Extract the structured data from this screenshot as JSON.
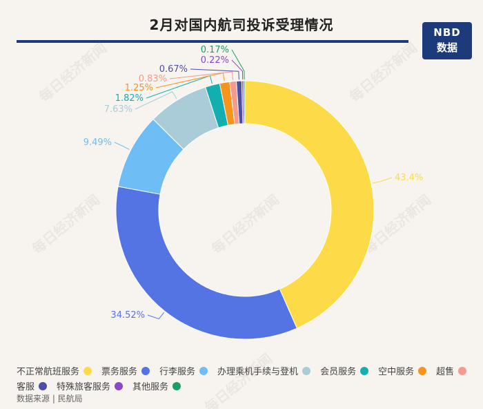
{
  "title": "2月对国内航司投诉受理情况",
  "logo": {
    "line1": "NBD",
    "line2": "数据"
  },
  "watermark": "每日经济新闻",
  "source": "数据来源 | 民航局",
  "chart_data": {
    "type": "pie",
    "donut": true,
    "title": "2月对国内航司投诉受理情况",
    "series": [
      {
        "name": "不正常航班服务",
        "value": 43.4,
        "label": "43.4%",
        "color": "#fddb48"
      },
      {
        "name": "票务服务",
        "value": 34.52,
        "label": "34.52%",
        "color": "#5474e4"
      },
      {
        "name": "行李服务",
        "value": 9.49,
        "label": "9.49%",
        "color": "#6ebdf5"
      },
      {
        "name": "办理乘机手续与登机",
        "value": 7.63,
        "label": "7.63%",
        "color": "#a9ccd8"
      },
      {
        "name": "会员服务",
        "value": 1.82,
        "label": "1.82%",
        "color": "#13aeb0"
      },
      {
        "name": "空中服务",
        "value": 1.25,
        "label": "1.25%",
        "color": "#f7941d"
      },
      {
        "name": "超售",
        "value": 0.83,
        "label": "0.83%",
        "color": "#f79a8e"
      },
      {
        "name": "客服",
        "value": 0.67,
        "label": "0.67%",
        "color": "#4a4fa3"
      },
      {
        "name": "特殊旅客服务",
        "value": 0.22,
        "label": "0.22%",
        "color": "#8a47c7"
      },
      {
        "name": "其他服务",
        "value": 0.17,
        "label": "0.17%",
        "color": "#18a065"
      }
    ]
  }
}
